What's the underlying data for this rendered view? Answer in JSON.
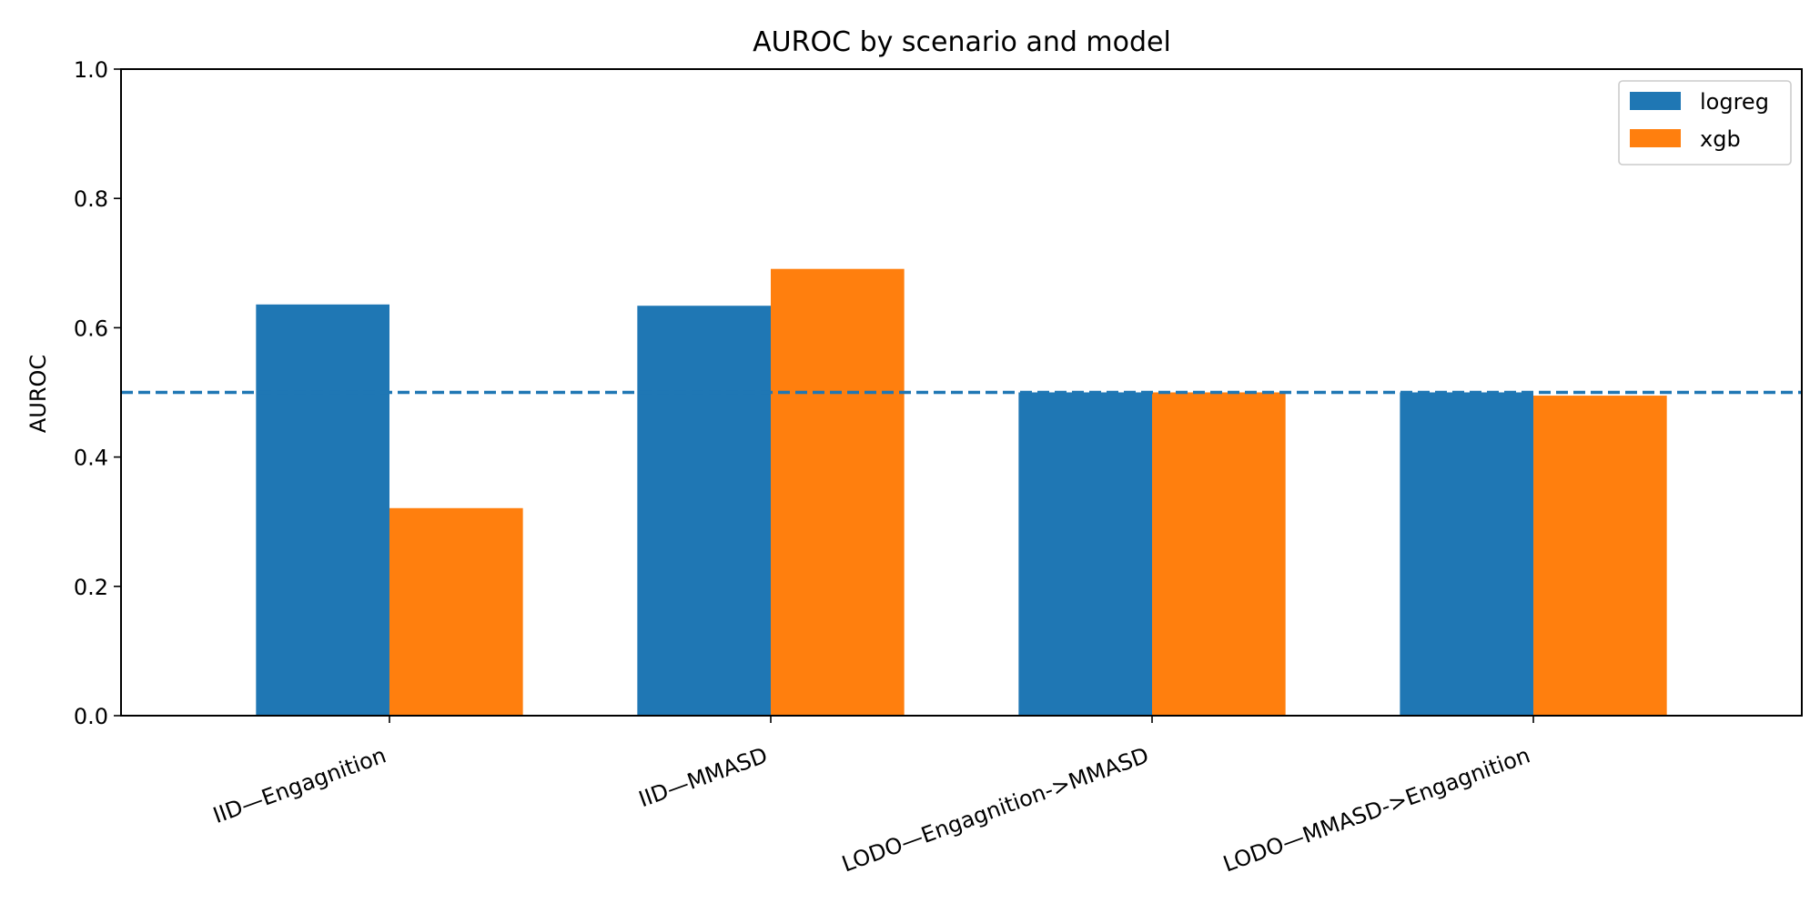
{
  "chart_data": {
    "type": "bar",
    "title": "AUROC by scenario and model",
    "xlabel": "",
    "ylabel": "AUROC",
    "categories": [
      "IID—Engagnition",
      "IID—MMASD",
      "LODO—Engagnition->MMASD",
      "LODO—MMASD->Engagnition"
    ],
    "series": [
      {
        "name": "logreg",
        "color": "#1f77b4",
        "values": [
          0.636,
          0.634,
          0.5,
          0.5
        ]
      },
      {
        "name": "xgb",
        "color": "#ff7f0e",
        "values": [
          0.321,
          0.691,
          0.5,
          0.495
        ]
      }
    ],
    "ylim": [
      0,
      1.0
    ],
    "yticks": [
      "0.0",
      "0.2",
      "0.4",
      "0.6",
      "0.8",
      "1.0"
    ],
    "reference_line": {
      "y": 0.5,
      "style": "dashed",
      "color": "#1f77b4"
    },
    "grid": false,
    "legend_position": "top-right"
  }
}
